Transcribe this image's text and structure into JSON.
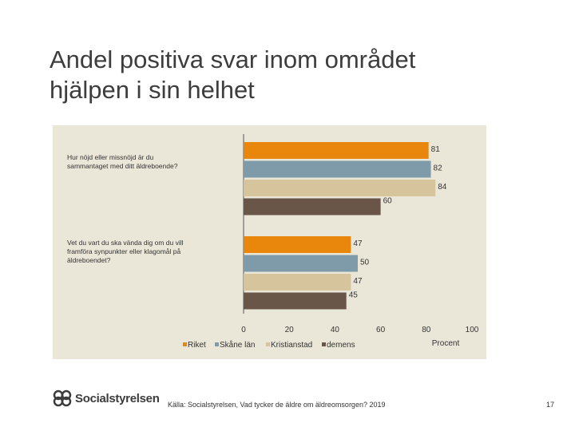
{
  "slide": {
    "title_line1": "Andel positiva svar inom området",
    "title_line2": "hjälpen i sin helhet",
    "source": "Källa: Socialstyrelsen, Vad tycker de äldre om äldreomsorgen? 2019",
    "page_number": "17",
    "logo_text": "Socialstyrelsen"
  },
  "chart_data": {
    "type": "bar",
    "orientation": "horizontal",
    "categories": [
      "Hur nöjd eller missnöjd är du sammantaget med ditt äldreboende?",
      "Vet du vart du ska vända dig om du vill framföra synpunkter eller klagomål på äldreboendet?"
    ],
    "category_lines": [
      [
        "Hur nöjd eller missnöjd är du",
        "sammantaget med ditt äldreboende?"
      ],
      [
        "Vet du vart du ska vända dig om du vill",
        "framföra synpunkter eller klagomål på",
        "äldreboendet?"
      ]
    ],
    "series": [
      {
        "name": "Riket",
        "color": "#e8870b",
        "values": [
          81,
          47
        ]
      },
      {
        "name": "Skåne län",
        "color": "#7f9aa8",
        "values": [
          82,
          50
        ]
      },
      {
        "name": "Kristianstad",
        "color": "#d6c49c",
        "values": [
          84,
          47
        ]
      },
      {
        "name": "demens",
        "color": "#6a5648",
        "values": [
          60,
          45
        ]
      }
    ],
    "xlim": [
      0,
      100
    ],
    "xticks": [
      "0",
      "20",
      "40",
      "60",
      "80",
      "100"
    ],
    "xlabel": "Procent",
    "data_labels": true,
    "legend_position": "bottom-left",
    "grid": false
  }
}
